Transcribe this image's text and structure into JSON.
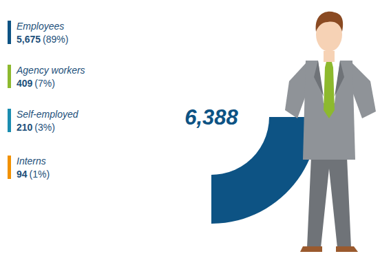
{
  "chart_data": {
    "type": "donut",
    "categories": [
      "Employees",
      "Agency workers",
      "Self-employed",
      "Interns"
    ],
    "values": [
      5675,
      409,
      210,
      94
    ],
    "value_labels": [
      "5,675",
      "409",
      "210",
      "94"
    ],
    "percent_labels": [
      "(89%)",
      "(7%)",
      "(3%)",
      "(1%)"
    ],
    "colors": [
      "#0d5384",
      "#8db92e",
      "#1a8db0",
      "#f29100"
    ],
    "total": 6388,
    "total_label": "6,388",
    "legend": "left"
  }
}
